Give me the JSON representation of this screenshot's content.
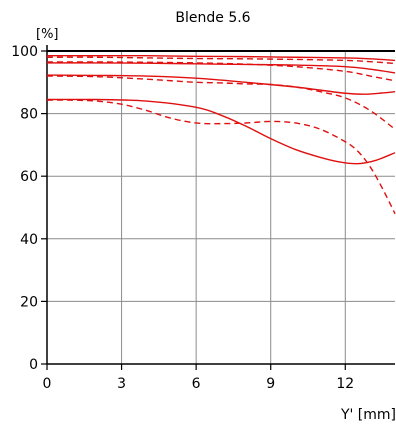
{
  "chart_data": {
    "type": "line",
    "title": "Blende 5.6",
    "ylabel": "[%]",
    "xlabel": "Y' [mm]",
    "xlim": [
      0,
      14
    ],
    "ylim": [
      0,
      100
    ],
    "xticks": [
      0,
      3,
      6,
      9,
      12
    ],
    "yticks": [
      0,
      20,
      40,
      60,
      80,
      100
    ],
    "grid": true,
    "line_color": "#e01010",
    "series": [
      {
        "style": "solid",
        "x": [
          0,
          2,
          4,
          6,
          8,
          10,
          12,
          13,
          14
        ],
        "y": [
          98.5,
          98.5,
          98.5,
          98.3,
          98.2,
          98.0,
          97.8,
          97.5,
          97
        ]
      },
      {
        "style": "dashed",
        "x": [
          0,
          2,
          4,
          6,
          8,
          10,
          12,
          13,
          14
        ],
        "y": [
          98,
          98,
          97.8,
          97.6,
          97.5,
          97.3,
          97,
          96.6,
          96
        ]
      },
      {
        "style": "solid",
        "x": [
          0,
          2,
          4,
          6,
          8,
          10,
          12,
          13,
          14
        ],
        "y": [
          96.2,
          96.2,
          96.1,
          95.9,
          95.7,
          95.5,
          95,
          94.2,
          93
        ]
      },
      {
        "style": "dashed",
        "x": [
          0,
          2,
          4,
          6,
          8,
          10,
          12,
          13,
          14
        ],
        "y": [
          96.5,
          96.5,
          96.4,
          96.2,
          95.8,
          95,
          93.5,
          92,
          90.5
        ]
      },
      {
        "style": "solid",
        "x": [
          0,
          2,
          4,
          6,
          8,
          10,
          11,
          12,
          12.8,
          13.5,
          14
        ],
        "y": [
          92.3,
          92.2,
          92,
          91.3,
          90,
          88.5,
          87.5,
          86.5,
          86.2,
          86.6,
          87
        ]
      },
      {
        "style": "dashed",
        "x": [
          0,
          2,
          4,
          5,
          6,
          7,
          8,
          9,
          10,
          11,
          12,
          13,
          14
        ],
        "y": [
          92,
          91.8,
          91,
          90.5,
          90,
          89.8,
          89.5,
          89.3,
          88.5,
          87,
          85,
          81,
          75
        ]
      },
      {
        "style": "solid",
        "x": [
          0,
          2,
          4,
          6,
          7,
          8,
          9,
          10,
          11,
          11.8,
          12.5,
          13.2,
          14
        ],
        "y": [
          84.5,
          84.5,
          84,
          82,
          79.5,
          76,
          72,
          68.5,
          66,
          64.5,
          64,
          65,
          67.5
        ]
      },
      {
        "style": "dashed",
        "x": [
          0,
          1,
          2,
          3,
          4,
          5,
          6,
          7,
          8,
          9,
          10,
          11,
          12,
          12.5,
          13,
          13.5,
          14
        ],
        "y": [
          84.3,
          84.3,
          84,
          83,
          81,
          78.5,
          77,
          76.8,
          77,
          77.5,
          77,
          75,
          71,
          68,
          63,
          56,
          48
        ]
      }
    ]
  }
}
